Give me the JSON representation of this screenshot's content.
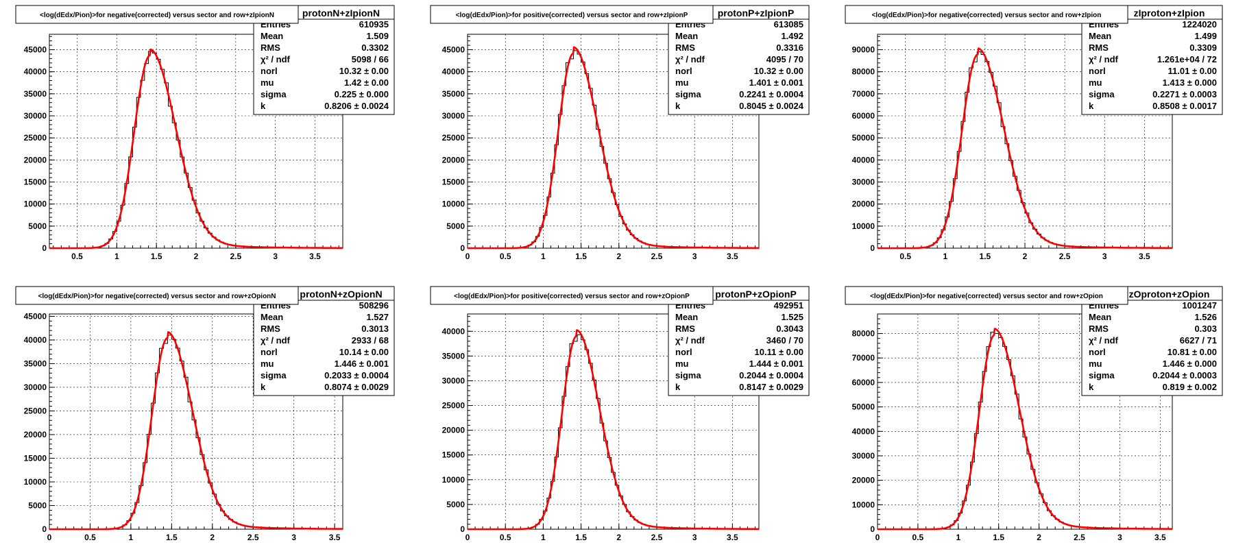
{
  "colors": {
    "fit": "#ff0000",
    "hist": "#000000",
    "grid": "#000000",
    "background": "#ffffff"
  },
  "charts": [
    {
      "panel_title": "<log(dEdx/Pion)>for negative(corrected) versus sector and row+zIpionN",
      "stats": {
        "name": "protonN+zIpionN",
        "rows": [
          {
            "label": "Entries",
            "value": "610935"
          },
          {
            "label": "Mean",
            "value": "1.509"
          },
          {
            "label": "RMS",
            "value": "0.3302"
          },
          {
            "label": "χ² / ndf",
            "value": "5098 / 66"
          },
          {
            "label": "norl",
            "value": "10.32 ± 0.00"
          },
          {
            "label": "mu",
            "value": "1.42 ± 0.00"
          },
          {
            "label": "sigma",
            "value": "0.225 ± 0.000"
          },
          {
            "label": "k",
            "value": "0.8206 ± 0.0024"
          }
        ]
      }
    },
    {
      "panel_title": "<log(dEdx/Pion)>for positive(corrected) versus sector and row+zIpionP",
      "stats": {
        "name": "protonP+zIpionP",
        "rows": [
          {
            "label": "Entries",
            "value": "613085"
          },
          {
            "label": "Mean",
            "value": "1.492"
          },
          {
            "label": "RMS",
            "value": "0.3316"
          },
          {
            "label": "χ² / ndf",
            "value": "4095 / 70"
          },
          {
            "label": "norl",
            "value": "10.32 ± 0.00"
          },
          {
            "label": "mu",
            "value": "1.401 ± 0.001"
          },
          {
            "label": "sigma",
            "value": "0.2241 ± 0.0004"
          },
          {
            "label": "k",
            "value": "0.8045 ± 0.0024"
          }
        ]
      }
    },
    {
      "panel_title": "<log(dEdx/Pion)>for negative(corrected) versus sector and row+zIpion",
      "stats": {
        "name": "zIproton+zIpion",
        "rows": [
          {
            "label": "Entries",
            "value": "1224020"
          },
          {
            "label": "Mean",
            "value": "1.499"
          },
          {
            "label": "RMS",
            "value": "0.3309"
          },
          {
            "label": "χ² / ndf",
            "value": "1.261e+04 / 72"
          },
          {
            "label": "norl",
            "value": "11.01 ± 0.00"
          },
          {
            "label": "mu",
            "value": "1.413 ± 0.000"
          },
          {
            "label": "sigma",
            "value": "0.2271 ± 0.0003"
          },
          {
            "label": "k",
            "value": "0.8508 ± 0.0017"
          }
        ]
      }
    },
    {
      "panel_title": "<log(dEdx/Pion)>for negative(corrected) versus sector and row+zOpionN",
      "stats": {
        "name": "protonN+zOpionN",
        "rows": [
          {
            "label": "Entries",
            "value": "508296"
          },
          {
            "label": "Mean",
            "value": "1.527"
          },
          {
            "label": "RMS",
            "value": "0.3013"
          },
          {
            "label": "χ² / ndf",
            "value": "2933 / 68"
          },
          {
            "label": "norl",
            "value": "10.14 ± 0.00"
          },
          {
            "label": "mu",
            "value": "1.446 ± 0.001"
          },
          {
            "label": "sigma",
            "value": "0.2033 ± 0.0004"
          },
          {
            "label": "k",
            "value": "0.8074 ± 0.0029"
          }
        ]
      }
    },
    {
      "panel_title": "<log(dEdx/Pion)>for positive(corrected) versus sector and row+zOpionP",
      "stats": {
        "name": "protonP+zOpionP",
        "rows": [
          {
            "label": "Entries",
            "value": "492951"
          },
          {
            "label": "Mean",
            "value": "1.525"
          },
          {
            "label": "RMS",
            "value": "0.3043"
          },
          {
            "label": "χ² / ndf",
            "value": "3460 / 70"
          },
          {
            "label": "norl",
            "value": "10.11 ± 0.00"
          },
          {
            "label": "mu",
            "value": "1.444 ± 0.001"
          },
          {
            "label": "sigma",
            "value": "0.2044 ± 0.0004"
          },
          {
            "label": "k",
            "value": "0.8147 ± 0.0029"
          }
        ]
      }
    },
    {
      "panel_title": "<log(dEdx/Pion)>for negative(corrected) versus sector and row+zOpion",
      "stats": {
        "name": "zOproton+zOpion",
        "rows": [
          {
            "label": "Entries",
            "value": "1001247"
          },
          {
            "label": "Mean",
            "value": "1.526"
          },
          {
            "label": "RMS",
            "value": "0.303"
          },
          {
            "label": "χ² / ndf",
            "value": "6627 / 71"
          },
          {
            "label": "norl",
            "value": "10.81 ± 0.00"
          },
          {
            "label": "mu",
            "value": "1.446 ± 0.000"
          },
          {
            "label": "sigma",
            "value": "0.2044 ± 0.0003"
          },
          {
            "label": "k",
            "value": "0.819 ± 0.002"
          }
        ]
      }
    }
  ],
  "chart_data": [
    {
      "type": "histogram",
      "title": "<log(dEdx/Pion)>for negative(corrected) versus sector and row+zIpionN",
      "xlim": [
        0.15,
        3.85
      ],
      "ylim": [
        0,
        48500
      ],
      "xticks": [
        0.5,
        1,
        1.5,
        2,
        2.5,
        3,
        3.5
      ],
      "xtick_labels": [
        "0.5",
        "1",
        "1.5",
        "2",
        "2.5",
        "3",
        "3.5"
      ],
      "yticks": [
        0,
        5000,
        10000,
        15000,
        20000,
        25000,
        30000,
        35000,
        40000,
        45000
      ],
      "ytick_labels": [
        "0",
        "5000",
        "10000",
        "15000",
        "20000",
        "25000",
        "30000",
        "35000",
        "40000",
        "45000"
      ],
      "grid": true,
      "peak_x": 1.42,
      "peak_y": 46500,
      "sigma_left": 0.2,
      "sigma_right": 0.32,
      "fit": {
        "mu": 1.42,
        "sigma": 0.225,
        "k": 0.8206
      }
    },
    {
      "type": "histogram",
      "title": "<log(dEdx/Pion)>for positive(corrected) versus sector and row+zIpionP",
      "xlim": [
        0,
        3.85
      ],
      "ylim": [
        0,
        48500
      ],
      "xticks": [
        0,
        0.5,
        1,
        1.5,
        2,
        2.5,
        3,
        3.5
      ],
      "xtick_labels": [
        "0",
        "0.5",
        "1",
        "1.5",
        "2",
        "2.5",
        "3",
        "3.5"
      ],
      "yticks": [
        0,
        5000,
        10000,
        15000,
        20000,
        25000,
        30000,
        35000,
        40000,
        45000
      ],
      "ytick_labels": [
        "0",
        "5000",
        "10000",
        "15000",
        "20000",
        "25000",
        "30000",
        "35000",
        "40000",
        "45000"
      ],
      "grid": true,
      "peak_x": 1.4,
      "peak_y": 47000,
      "sigma_left": 0.2,
      "sigma_right": 0.32,
      "fit": {
        "mu": 1.401,
        "sigma": 0.2241,
        "k": 0.8045
      }
    },
    {
      "type": "histogram",
      "title": "<log(dEdx/Pion)>for negative(corrected) versus sector and row+zIpion",
      "xlim": [
        0.15,
        3.85
      ],
      "ylim": [
        0,
        97000
      ],
      "xticks": [
        0.5,
        1,
        1.5,
        2,
        2.5,
        3,
        3.5
      ],
      "xtick_labels": [
        "0.5",
        "1",
        "1.5",
        "2",
        "2.5",
        "3",
        "3.5"
      ],
      "yticks": [
        0,
        10000,
        20000,
        30000,
        40000,
        50000,
        60000,
        70000,
        80000,
        90000
      ],
      "ytick_labels": [
        "0",
        "10000",
        "20000",
        "30000",
        "40000",
        "50000",
        "60000",
        "70000",
        "80000",
        "90000"
      ],
      "grid": true,
      "peak_x": 1.41,
      "peak_y": 93500,
      "sigma_left": 0.2,
      "sigma_right": 0.32,
      "fit": {
        "mu": 1.413,
        "sigma": 0.2271,
        "k": 0.8508
      }
    },
    {
      "type": "histogram",
      "title": "<log(dEdx/Pion)>for negative(corrected) versus sector and row+zOpionN",
      "xlim": [
        0,
        3.6
      ],
      "ylim": [
        0,
        45500
      ],
      "xticks": [
        0,
        0.5,
        1,
        1.5,
        2,
        2.5,
        3,
        3.5
      ],
      "xtick_labels": [
        "0",
        "0.5",
        "1",
        "1.5",
        "2",
        "2.5",
        "3",
        "3.5"
      ],
      "yticks": [
        0,
        5000,
        10000,
        15000,
        20000,
        25000,
        30000,
        35000,
        40000,
        45000
      ],
      "ytick_labels": [
        "0",
        "5000",
        "10000",
        "15000",
        "20000",
        "25000",
        "30000",
        "35000",
        "40000",
        "45000"
      ],
      "grid": true,
      "peak_x": 1.45,
      "peak_y": 43000,
      "sigma_left": 0.19,
      "sigma_right": 0.3,
      "fit": {
        "mu": 1.446,
        "sigma": 0.2033,
        "k": 0.8074
      }
    },
    {
      "type": "histogram",
      "title": "<log(dEdx/Pion)>for positive(corrected) versus sector and row+zOpionP",
      "xlim": [
        0,
        3.85
      ],
      "ylim": [
        0,
        43500
      ],
      "xticks": [
        0,
        0.5,
        1,
        1.5,
        2,
        2.5,
        3,
        3.5
      ],
      "xtick_labels": [
        "0",
        "0.5",
        "1",
        "1.5",
        "2",
        "2.5",
        "3",
        "3.5"
      ],
      "yticks": [
        0,
        5000,
        10000,
        15000,
        20000,
        25000,
        30000,
        35000,
        40000
      ],
      "ytick_labels": [
        "0",
        "5000",
        "10000",
        "15000",
        "20000",
        "25000",
        "30000",
        "35000",
        "40000"
      ],
      "grid": true,
      "peak_x": 1.44,
      "peak_y": 41500,
      "sigma_left": 0.19,
      "sigma_right": 0.3,
      "fit": {
        "mu": 1.444,
        "sigma": 0.2044,
        "k": 0.8147
      }
    },
    {
      "type": "histogram",
      "title": "<log(dEdx/Pion)>for negative(corrected) versus sector and row+zOpion",
      "xlim": [
        0,
        3.65
      ],
      "ylim": [
        0,
        88000
      ],
      "xticks": [
        0,
        0.5,
        1,
        1.5,
        2,
        2.5,
        3,
        3.5
      ],
      "xtick_labels": [
        "0",
        "0.5",
        "1",
        "1.5",
        "2",
        "2.5",
        "3",
        "3.5"
      ],
      "yticks": [
        0,
        10000,
        20000,
        30000,
        40000,
        50000,
        60000,
        70000,
        80000
      ],
      "ytick_labels": [
        "0",
        "10000",
        "20000",
        "30000",
        "40000",
        "50000",
        "60000",
        "70000",
        "80000"
      ],
      "grid": true,
      "peak_x": 1.45,
      "peak_y": 84500,
      "sigma_left": 0.19,
      "sigma_right": 0.3,
      "fit": {
        "mu": 1.446,
        "sigma": 0.2044,
        "k": 0.819
      }
    }
  ]
}
